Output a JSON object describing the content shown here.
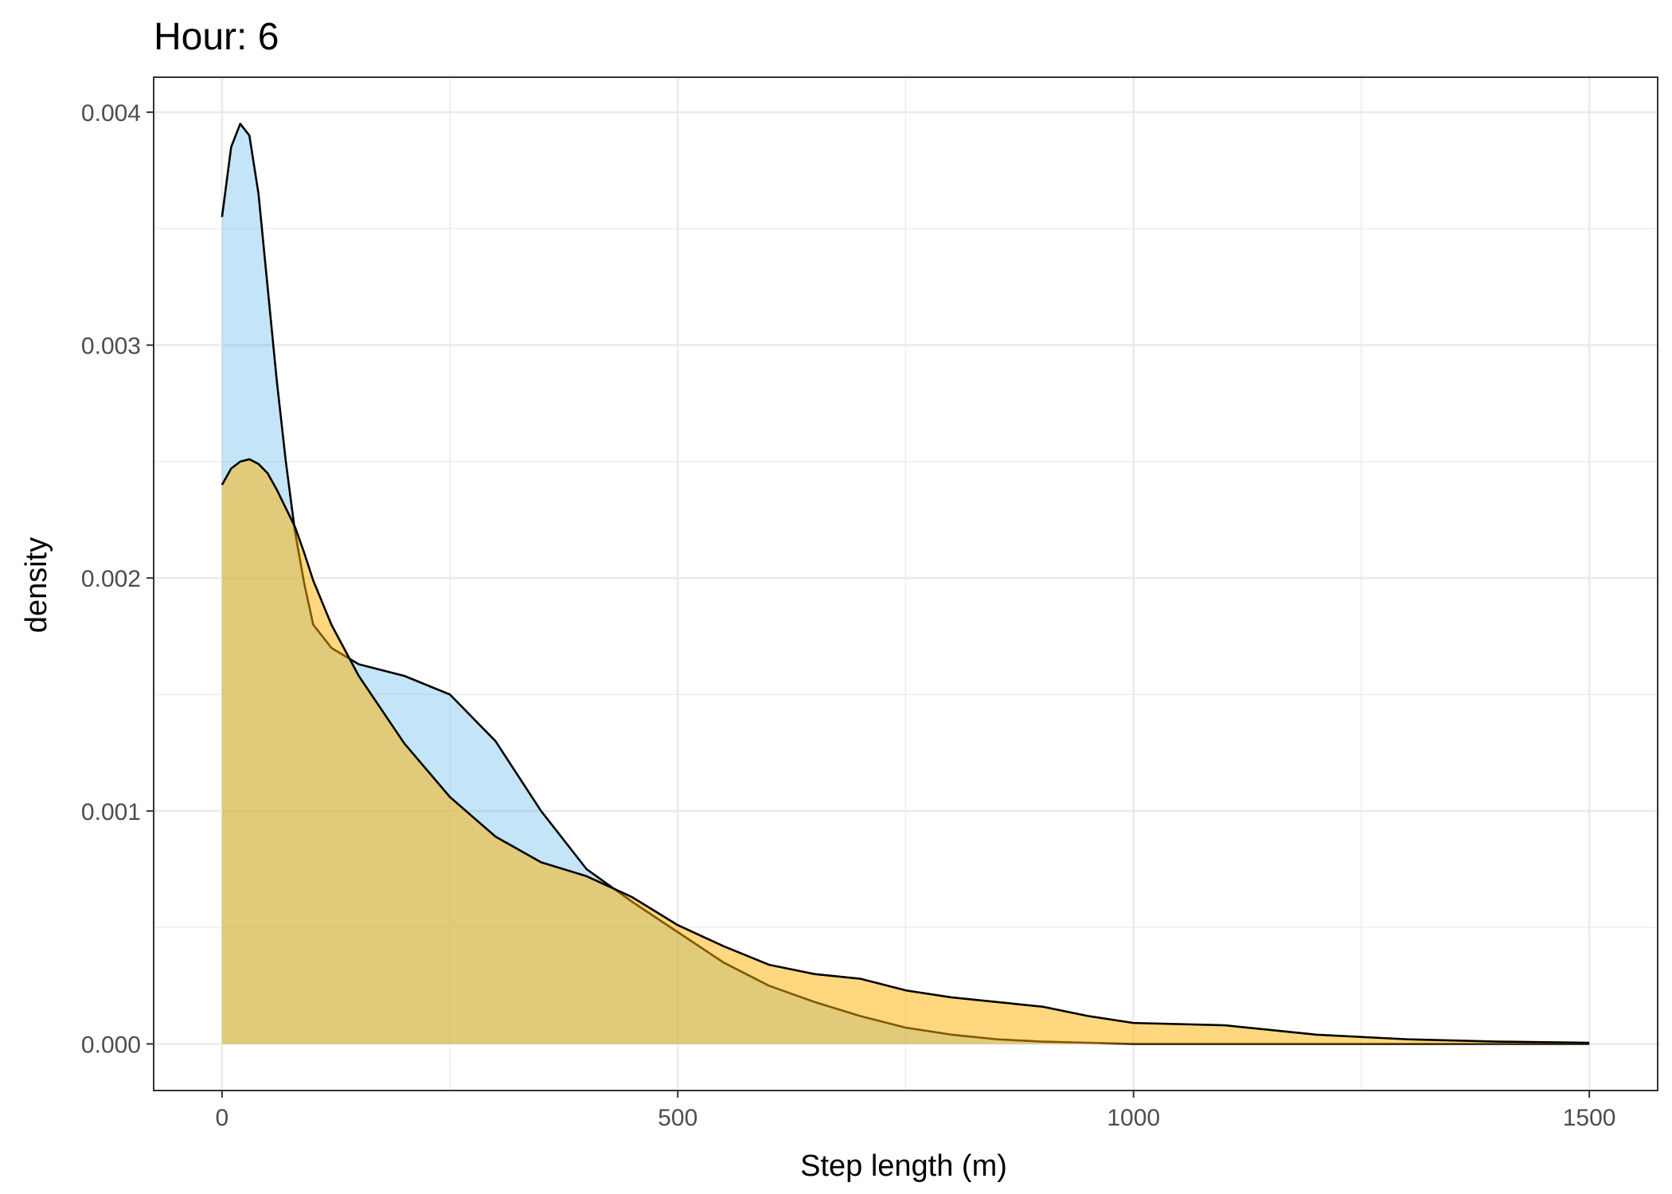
{
  "title": "Hour: 6",
  "chart_data": {
    "type": "area",
    "title": "Hour: 6",
    "xlabel": "Step length (m)",
    "ylabel": "density",
    "xlim": [
      -75,
      1575
    ],
    "ylim": [
      -0.0002,
      0.00415
    ],
    "x_ticks": [
      0,
      500,
      1000,
      1500
    ],
    "x_tick_labels": [
      "0",
      "500",
      "1000",
      "1500"
    ],
    "y_ticks": [
      0,
      0.001,
      0.002,
      0.003,
      0.004
    ],
    "y_tick_labels": [
      "0.000",
      "0.001",
      "0.002",
      "0.003",
      "0.004"
    ],
    "grid": true,
    "legend": "none",
    "series": [
      {
        "fill": "#56B4E9",
        "fill_opacity": 0.35,
        "x": [
          0,
          10,
          20,
          30,
          40,
          50,
          60,
          70,
          80,
          90,
          100,
          120,
          150,
          200,
          250,
          300,
          350,
          400,
          450,
          500,
          550,
          600,
          650,
          700,
          750,
          800,
          850,
          900,
          950,
          1000,
          1100,
          1200,
          1300,
          1400,
          1500
        ],
        "y": [
          0.00355,
          0.00385,
          0.00395,
          0.0039,
          0.00365,
          0.00325,
          0.00285,
          0.0025,
          0.0022,
          0.00198,
          0.0018,
          0.0017,
          0.00163,
          0.00158,
          0.0015,
          0.0013,
          0.001,
          0.00075,
          0.00061,
          0.00048,
          0.00035,
          0.00025,
          0.00018,
          0.00012,
          7e-05,
          4e-05,
          2e-05,
          1e-05,
          5e-06,
          0.0,
          0.0,
          0.0,
          0.0,
          0.0,
          0.0
        ]
      },
      {
        "fill": "#FFB000",
        "fill_opacity": 0.5,
        "x": [
          0,
          10,
          20,
          30,
          40,
          50,
          60,
          70,
          80,
          90,
          100,
          120,
          150,
          200,
          250,
          300,
          350,
          400,
          450,
          500,
          550,
          600,
          650,
          700,
          750,
          800,
          850,
          900,
          950,
          1000,
          1100,
          1200,
          1300,
          1400,
          1500
        ],
        "y": [
          0.0024,
          0.00247,
          0.0025,
          0.00251,
          0.00249,
          0.00245,
          0.00238,
          0.0023,
          0.00222,
          0.00211,
          0.00199,
          0.0018,
          0.00158,
          0.00129,
          0.00106,
          0.00089,
          0.00078,
          0.00072,
          0.00063,
          0.00051,
          0.00042,
          0.00034,
          0.0003,
          0.00028,
          0.00023,
          0.0002,
          0.00018,
          0.00016,
          0.00012,
          9e-05,
          8e-05,
          4e-05,
          2e-05,
          1e-05,
          5e-06
        ]
      }
    ]
  }
}
